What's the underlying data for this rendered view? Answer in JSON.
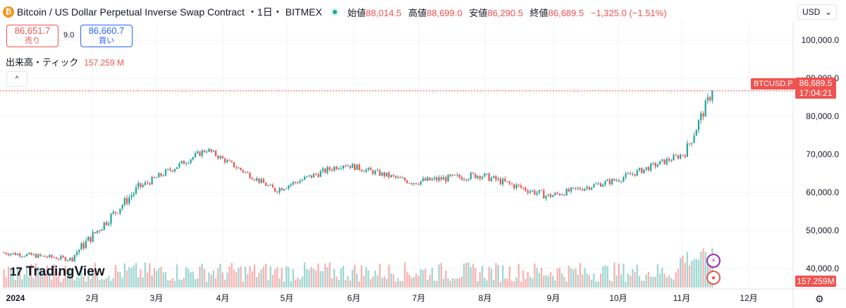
{
  "header": {
    "coin_glyph": "₿",
    "title": "Bitcoin / US Dollar Perpetual Inverse Swap Contract",
    "interval": "・1日・",
    "exchange": "BITMEX",
    "ohlc": [
      {
        "label": "始値",
        "value": "88,014.5"
      },
      {
        "label": "高値",
        "value": "88,699.0"
      },
      {
        "label": "安値",
        "value": "86,290.5"
      },
      {
        "label": "終値",
        "value": "86,689.5"
      }
    ],
    "change": "−1,325.0 (−1.51%)"
  },
  "currency": {
    "label": "USD",
    "arrow": "⌄"
  },
  "trade": {
    "sell_price": "86,651.7",
    "sell_label": "売り",
    "spread": "9.0",
    "buy_price": "86,660.7",
    "buy_label": "買い"
  },
  "volume_legend": {
    "label": "出来高・ティック",
    "value": "157.259 M"
  },
  "collapse_glyph": "^",
  "logo": {
    "mark": "17",
    "text": "TradingView"
  },
  "price_label": {
    "symbol": "BTCUSD.P",
    "price": "86,689.5",
    "countdown": "17:04:21"
  },
  "volume_label": "157.259M",
  "settings_glyph": "⚙",
  "colors": {
    "up": "#26a69a",
    "down": "#ef5350",
    "grid": "#f0f3fa",
    "text": "#131722"
  },
  "chart_data": {
    "type": "candlestick",
    "y_axis": {
      "ticks": [
        40000,
        50000,
        60000,
        70000,
        80000,
        90000,
        100000
      ],
      "tick_labels": [
        "40,000.0",
        "50,000.0",
        "60,000.0",
        "70,000.0",
        "80,000.0",
        "90,000.0",
        "100,000.0"
      ],
      "ylim": [
        35000,
        105000
      ]
    },
    "x_axis": {
      "tick_labels": [
        "2024",
        "2月",
        "3月",
        "4月",
        "5月",
        "6月",
        "7月",
        "8月",
        "9月",
        "10月",
        "11月",
        "12月"
      ]
    },
    "grid": true,
    "last_close": 86689.5,
    "series_monthly_approx": [
      {
        "month": "2024-01",
        "open": 44200,
        "high": 49000,
        "low": 38500,
        "close": 42500
      },
      {
        "month": "2024-02",
        "open": 42500,
        "high": 63500,
        "low": 41800,
        "close": 61200
      },
      {
        "month": "2024-03",
        "open": 61200,
        "high": 73800,
        "low": 59000,
        "close": 71300
      },
      {
        "month": "2024-04",
        "open": 71300,
        "high": 72500,
        "low": 59600,
        "close": 60600
      },
      {
        "month": "2024-05",
        "open": 60600,
        "high": 71900,
        "low": 56600,
        "close": 67500
      },
      {
        "month": "2024-06",
        "open": 67500,
        "high": 72000,
        "low": 58500,
        "close": 62700
      },
      {
        "month": "2024-07",
        "open": 62700,
        "high": 70000,
        "low": 53500,
        "close": 64600
      },
      {
        "month": "2024-08",
        "open": 64600,
        "high": 65500,
        "low": 49000,
        "close": 59000
      },
      {
        "month": "2024-09",
        "open": 59000,
        "high": 66500,
        "low": 52500,
        "close": 63300
      },
      {
        "month": "2024-10",
        "open": 63300,
        "high": 73600,
        "low": 58900,
        "close": 70200
      },
      {
        "month": "2024-11",
        "open": 70200,
        "high": 93500,
        "low": 66800,
        "close": 86689.5
      }
    ]
  }
}
